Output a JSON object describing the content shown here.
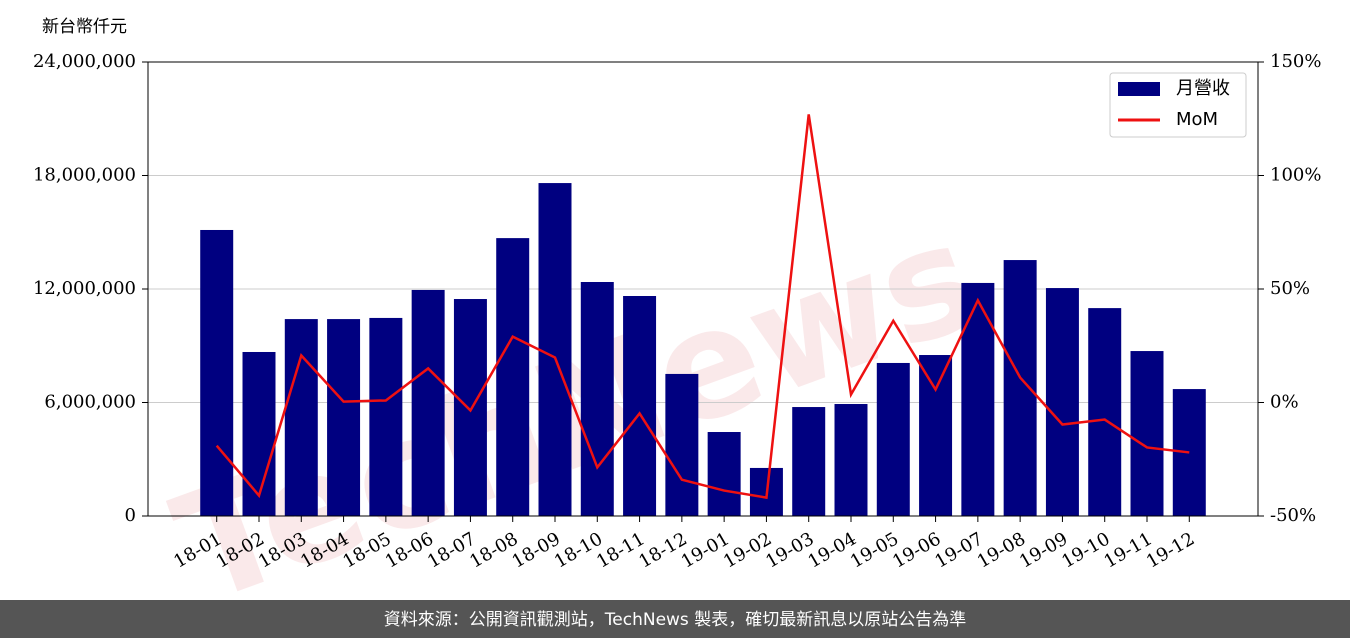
{
  "chart_data": {
    "type": "bar",
    "y_axis_label": "新台幣仟元",
    "watermark": "TechNews",
    "footer": "資料來源：公開資訊觀測站，TechNews 製表，確切最新訊息以原站公告為準",
    "categories": [
      "18-01",
      "18-02",
      "18-03",
      "18-04",
      "18-05",
      "18-06",
      "18-07",
      "18-08",
      "18-09",
      "18-10",
      "18-11",
      "18-12",
      "19-01",
      "19-02",
      "19-03",
      "19-04",
      "19-05",
      "19-06",
      "19-07",
      "19-08",
      "19-09",
      "19-10",
      "19-11",
      "19-12"
    ],
    "series": [
      {
        "name": "月營收",
        "type": "bar",
        "color": "#000080",
        "values": [
          15120000,
          8670000,
          10410000,
          10410000,
          10470000,
          11950000,
          11470000,
          14690000,
          17600000,
          12370000,
          11630000,
          7510000,
          4440000,
          2540000,
          5760000,
          5920000,
          8090000,
          8510000,
          12320000,
          13530000,
          12050000,
          10990000,
          8720000,
          6710000
        ]
      },
      {
        "name": "MoM",
        "type": "line",
        "axis": "y2",
        "color": "#ee1111",
        "values": [
          -19,
          -41,
          20.7,
          0.4,
          0.9,
          15,
          -3.5,
          29,
          19.8,
          -28.6,
          -4.8,
          -34,
          -38.8,
          -41.9,
          126.9,
          3.5,
          36,
          5.7,
          45,
          11,
          -9.7,
          -7.5,
          -19.8,
          -22
        ]
      }
    ],
    "ylim": [
      0,
      24000000
    ],
    "yticks": [
      0,
      {
        "value": 6000000,
        "label": "6,000,000"
      },
      {
        "value": 12000000,
        "label": "12,000,000"
      },
      {
        "value": 18000000,
        "label": "18,000,000"
      },
      {
        "value": 24000000,
        "label": "24,000,000"
      }
    ],
    "y2lim": [
      -50,
      150
    ],
    "y2ticks": [
      {
        "value": -50,
        "label": "-50%"
      },
      {
        "value": 0,
        "label": "0%"
      },
      {
        "value": 50,
        "label": "50%"
      },
      {
        "value": 100,
        "label": "100%"
      },
      {
        "value": 150,
        "label": "150%"
      }
    ],
    "grid": true,
    "legend": "upper right"
  }
}
